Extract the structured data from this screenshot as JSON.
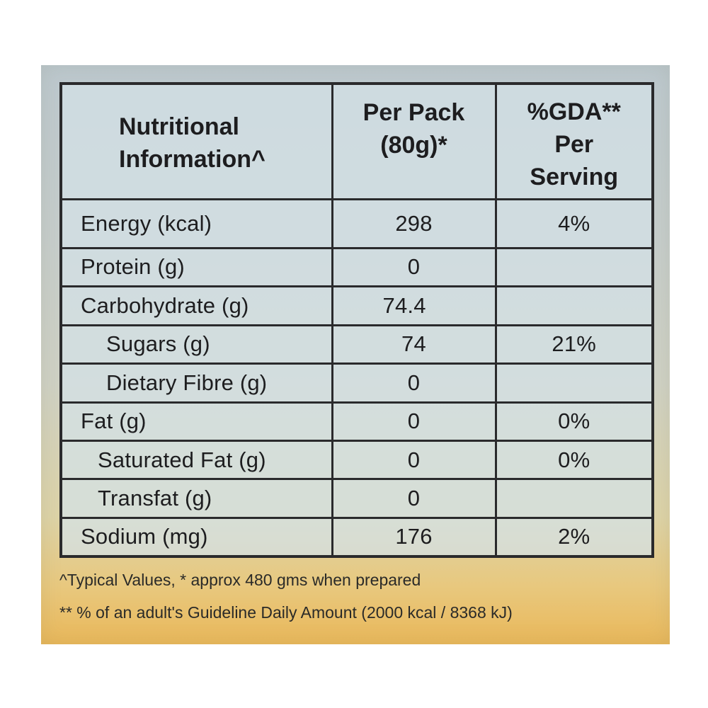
{
  "header": {
    "name_line1": "Nutritional",
    "name_line2": "Information^",
    "pack_line1": "Per Pack",
    "pack_line2": "(80g)*",
    "gda_line1": "%GDA**",
    "gda_line2": "Per",
    "gda_line3": "Serving"
  },
  "rows": [
    {
      "name": "Energy (kcal)",
      "per_pack": "298",
      "gda": "4%"
    },
    {
      "name": "Protein (g)",
      "per_pack": "0",
      "gda": ""
    },
    {
      "name": "Carbohydrate (g)",
      "per_pack": "74.4",
      "gda": ""
    },
    {
      "name": "Sugars (g)",
      "per_pack": "74",
      "gda": "21%"
    },
    {
      "name": "Dietary Fibre (g)",
      "per_pack": "0",
      "gda": ""
    },
    {
      "name": "Fat (g)",
      "per_pack": "0",
      "gda": "0%"
    },
    {
      "name": "Saturated Fat (g)",
      "per_pack": "0",
      "gda": "0%"
    },
    {
      "name": "Transfat (g)",
      "per_pack": "0",
      "gda": ""
    },
    {
      "name": "Sodium (mg)",
      "per_pack": "176",
      "gda": "2%"
    }
  ],
  "footnotes": {
    "typical": "^Typical Values,  * approx 480 gms when prepared",
    "gda": "** % of an adult's Guideline Daily Amount (2000 kcal / 8368 kJ)"
  }
}
